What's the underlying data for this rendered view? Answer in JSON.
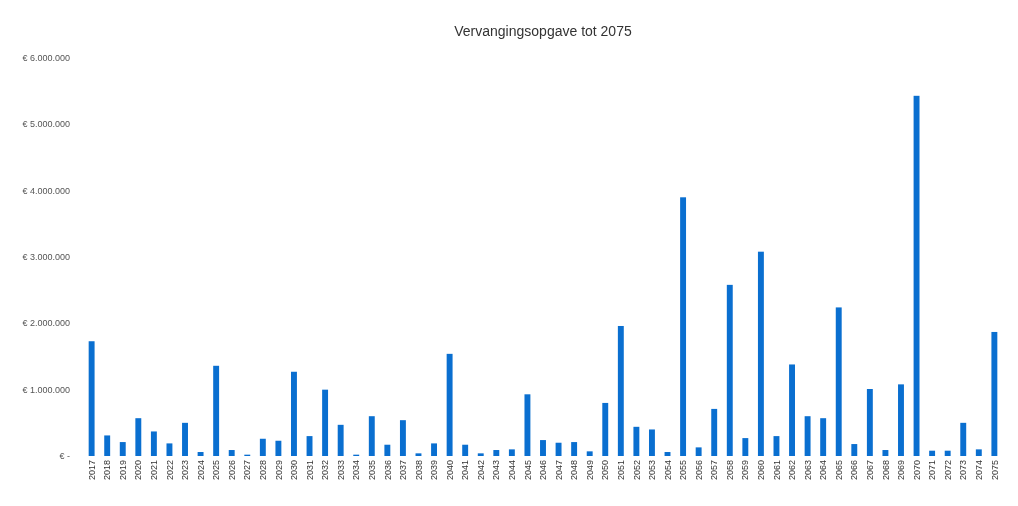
{
  "chart_data": {
    "type": "bar",
    "title": "Vervangingsopgave tot 2075",
    "categories": [
      "2017",
      "2018",
      "2019",
      "2020",
      "2021",
      "2022",
      "2023",
      "2024",
      "2025",
      "2026",
      "2027",
      "2028",
      "2029",
      "2030",
      "2031",
      "2032",
      "2033",
      "2034",
      "2035",
      "2036",
      "2037",
      "2038",
      "2039",
      "2040",
      "2041",
      "2042",
      "2043",
      "2044",
      "2045",
      "2046",
      "2047",
      "2048",
      "2049",
      "2050",
      "2051",
      "2052",
      "2053",
      "2054",
      "2055",
      "2056",
      "2057",
      "2058",
      "2059",
      "2060",
      "2061",
      "2062",
      "2063",
      "2064",
      "2065",
      "2066",
      "2067",
      "2068",
      "2069",
      "2070",
      "2071",
      "2072",
      "2073",
      "2074",
      "2075"
    ],
    "values": [
      1730000,
      310000,
      210000,
      570000,
      370000,
      190000,
      500000,
      60000,
      1360000,
      90000,
      20000,
      260000,
      230000,
      1270000,
      300000,
      1000000,
      470000,
      20000,
      600000,
      170000,
      540000,
      40000,
      190000,
      1540000,
      170000,
      40000,
      90000,
      100000,
      930000,
      240000,
      200000,
      210000,
      70000,
      800000,
      1960000,
      440000,
      400000,
      60000,
      3900000,
      130000,
      710000,
      2580000,
      270000,
      3080000,
      300000,
      1380000,
      600000,
      570000,
      2240000,
      180000,
      1010000,
      90000,
      1080000,
      5430000,
      80000,
      80000,
      500000,
      100000,
      1870000
    ],
    "color": "#0a6fd0",
    "ylim": [
      0,
      6000000
    ],
    "yticks": [
      {
        "value": 0,
        "label": "€ -"
      },
      {
        "value": 1000000,
        "label": "€ 1.000.000"
      },
      {
        "value": 2000000,
        "label": "€ 2.000.000"
      },
      {
        "value": 3000000,
        "label": "€ 3.000.000"
      },
      {
        "value": 4000000,
        "label": "€ 4.000.000"
      },
      {
        "value": 5000000,
        "label": "€ 5.000.000"
      },
      {
        "value": 6000000,
        "label": "€ 6.000.000"
      }
    ]
  }
}
